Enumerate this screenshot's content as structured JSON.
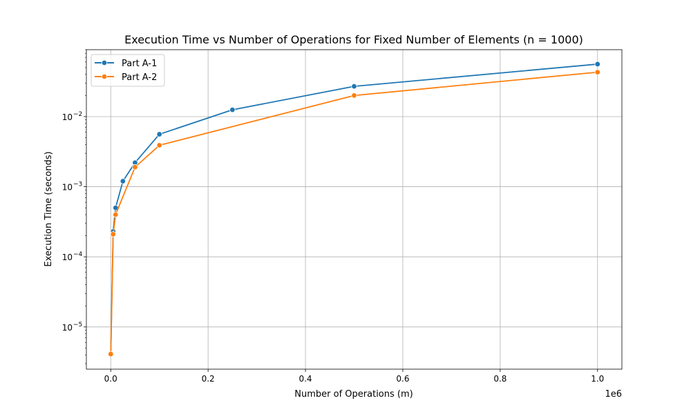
{
  "chart_data": {
    "type": "line",
    "title": "Execution Time vs Number of Operations for Fixed Number of Elements (n = 1000)",
    "xlabel": "Number of Operations (m)",
    "ylabel": "Execution Time (seconds)",
    "x_offset_label": "1e6",
    "x_scale": "linear",
    "y_scale": "log",
    "xlim": [
      -50000,
      1050000
    ],
    "ylim": [
      2.5e-06,
      0.09
    ],
    "x_ticks": [
      {
        "value": 0,
        "label": "0.0"
      },
      {
        "value": 200000,
        "label": "0.2"
      },
      {
        "value": 400000,
        "label": "0.4"
      },
      {
        "value": 600000,
        "label": "0.6"
      },
      {
        "value": 800000,
        "label": "0.8"
      },
      {
        "value": 1000000,
        "label": "1.0"
      }
    ],
    "y_ticks": [
      {
        "value": 1e-05,
        "base": "10",
        "exp": "−5"
      },
      {
        "value": 0.0001,
        "base": "10",
        "exp": "−4"
      },
      {
        "value": 0.001,
        "base": "10",
        "exp": "−3"
      },
      {
        "value": 0.01,
        "base": "10",
        "exp": "−2"
      }
    ],
    "grid": true,
    "legend_position": "top-left",
    "series": [
      {
        "name": "Part A-1",
        "color": "#1f77b4",
        "x": [
          100,
          5000,
          10000,
          25000,
          50000,
          100000,
          250000,
          500000,
          1000000
        ],
        "y": [
          4.2e-06,
          0.00023,
          0.0005,
          0.0012,
          0.0022,
          0.0056,
          0.0125,
          0.027,
          0.056
        ]
      },
      {
        "name": "Part A-2",
        "color": "#ff7f0e",
        "x": [
          100,
          5000,
          10000,
          50000,
          100000,
          500000,
          1000000
        ],
        "y": [
          4.1e-06,
          0.00021,
          0.0004,
          0.0019,
          0.0039,
          0.02,
          0.043
        ]
      }
    ]
  }
}
